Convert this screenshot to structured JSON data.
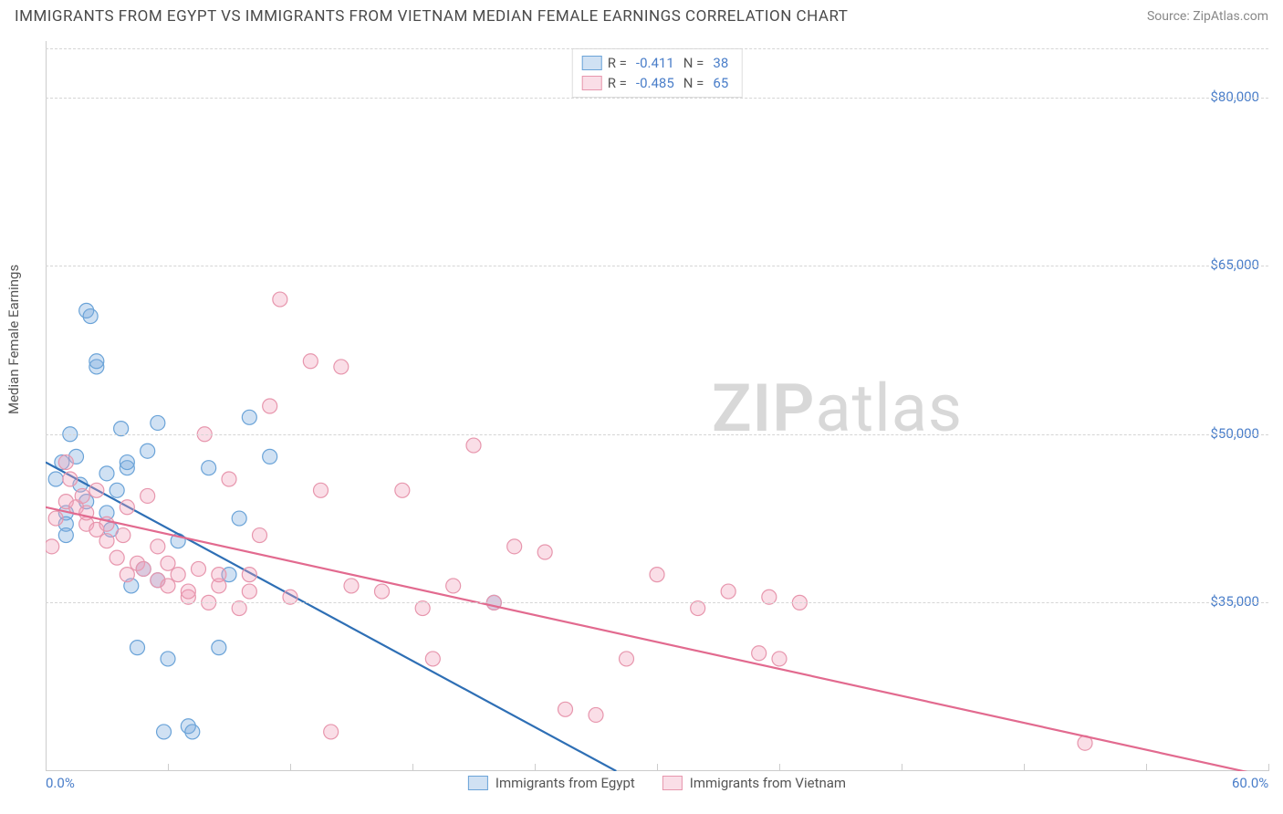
{
  "title": "IMMIGRANTS FROM EGYPT VS IMMIGRANTS FROM VIETNAM MEDIAN FEMALE EARNINGS CORRELATION CHART",
  "source": "Source: ZipAtlas.com",
  "watermark_a": "ZIP",
  "watermark_b": "atlas",
  "y_axis_label": "Median Female Earnings",
  "chart": {
    "type": "scatter",
    "background_color": "#ffffff",
    "grid_color": "#d5d5d5",
    "xlim": [
      0,
      60
    ],
    "ylim": [
      20000,
      85000
    ],
    "x_ticks": [
      0,
      6,
      12,
      18,
      24,
      30,
      36,
      42,
      48,
      54,
      60
    ],
    "x_tick_labels": {
      "0": "0.0%",
      "60": "60.0%"
    },
    "y_ticks": [
      35000,
      50000,
      65000,
      80000
    ],
    "y_tick_labels": [
      "$35,000",
      "$50,000",
      "$65,000",
      "$80,000"
    ],
    "point_radius": 8,
    "point_stroke_width": 1.2,
    "line_width": 2.2,
    "series": [
      {
        "id": "egypt",
        "label": "Immigrants from Egypt",
        "fill_color": "rgba(120,170,220,0.35)",
        "stroke_color": "#6aa3d8",
        "line_color": "#2e6fb5",
        "R": "-0.411",
        "N": "38",
        "regression": {
          "x1": 0,
          "y1": 47500,
          "x2": 28,
          "y2": 20000,
          "dashed_ext": {
            "x2": 30,
            "y2": 18000
          }
        },
        "points": [
          [
            0.5,
            46000
          ],
          [
            0.8,
            47500
          ],
          [
            1.0,
            43000
          ],
          [
            1.0,
            42000
          ],
          [
            1.0,
            41000
          ],
          [
            1.2,
            50000
          ],
          [
            1.5,
            48000
          ],
          [
            1.7,
            45500
          ],
          [
            2.0,
            44000
          ],
          [
            2.0,
            61000
          ],
          [
            2.2,
            60500
          ],
          [
            2.5,
            56000
          ],
          [
            2.5,
            56500
          ],
          [
            3.0,
            46500
          ],
          [
            3.0,
            43000
          ],
          [
            3.2,
            41500
          ],
          [
            3.5,
            45000
          ],
          [
            3.7,
            50500
          ],
          [
            4.0,
            47000
          ],
          [
            4.0,
            47500
          ],
          [
            4.2,
            36500
          ],
          [
            4.5,
            31000
          ],
          [
            4.8,
            38000
          ],
          [
            5.0,
            48500
          ],
          [
            5.5,
            51000
          ],
          [
            5.5,
            37000
          ],
          [
            5.8,
            23500
          ],
          [
            6.0,
            30000
          ],
          [
            6.5,
            40500
          ],
          [
            7.0,
            24000
          ],
          [
            7.2,
            23500
          ],
          [
            8.0,
            47000
          ],
          [
            8.5,
            31000
          ],
          [
            9.0,
            37500
          ],
          [
            9.5,
            42500
          ],
          [
            10.0,
            51500
          ],
          [
            11.0,
            48000
          ],
          [
            22.0,
            35000
          ]
        ]
      },
      {
        "id": "vietnam",
        "label": "Immigrants from Vietnam",
        "fill_color": "rgba(240,160,185,0.35)",
        "stroke_color": "#e796ad",
        "line_color": "#e26a8f",
        "R": "-0.485",
        "N": "65",
        "regression": {
          "x1": 0,
          "y1": 43500,
          "x2": 60,
          "y2": 19500
        },
        "points": [
          [
            0.5,
            42500
          ],
          [
            1.0,
            44000
          ],
          [
            1.0,
            47500
          ],
          [
            1.2,
            46000
          ],
          [
            1.5,
            43500
          ],
          [
            1.8,
            44500
          ],
          [
            2.0,
            42000
          ],
          [
            2.0,
            43000
          ],
          [
            2.5,
            41500
          ],
          [
            2.5,
            45000
          ],
          [
            3.0,
            40500
          ],
          [
            3.0,
            42000
          ],
          [
            3.5,
            39000
          ],
          [
            3.8,
            41000
          ],
          [
            4.0,
            43500
          ],
          [
            4.0,
            37500
          ],
          [
            4.5,
            38500
          ],
          [
            4.8,
            38000
          ],
          [
            5.0,
            44500
          ],
          [
            5.5,
            37000
          ],
          [
            5.5,
            40000
          ],
          [
            6.0,
            36500
          ],
          [
            6.0,
            38500
          ],
          [
            6.5,
            37500
          ],
          [
            7.0,
            35500
          ],
          [
            7.0,
            36000
          ],
          [
            7.5,
            38000
          ],
          [
            7.8,
            50000
          ],
          [
            8.0,
            35000
          ],
          [
            8.5,
            36500
          ],
          [
            8.5,
            37500
          ],
          [
            9.0,
            46000
          ],
          [
            9.5,
            34500
          ],
          [
            10.0,
            36000
          ],
          [
            10.0,
            37500
          ],
          [
            10.5,
            41000
          ],
          [
            11.0,
            52500
          ],
          [
            11.5,
            62000
          ],
          [
            12.0,
            35500
          ],
          [
            13.0,
            56500
          ],
          [
            13.5,
            45000
          ],
          [
            14.0,
            23500
          ],
          [
            15.0,
            36500
          ],
          [
            14.5,
            56000
          ],
          [
            16.5,
            36000
          ],
          [
            17.5,
            45000
          ],
          [
            18.5,
            34500
          ],
          [
            19.0,
            30000
          ],
          [
            20.0,
            36500
          ],
          [
            21.0,
            49000
          ],
          [
            22.0,
            35000
          ],
          [
            23.0,
            40000
          ],
          [
            24.5,
            39500
          ],
          [
            25.5,
            25500
          ],
          [
            27.0,
            25000
          ],
          [
            28.5,
            30000
          ],
          [
            30.0,
            37500
          ],
          [
            32.0,
            34500
          ],
          [
            33.5,
            36000
          ],
          [
            35.0,
            30500
          ],
          [
            35.5,
            35500
          ],
          [
            36.0,
            30000
          ],
          [
            37.0,
            35000
          ],
          [
            51.0,
            22500
          ],
          [
            0.3,
            40000
          ]
        ]
      }
    ]
  },
  "legend_labels": {
    "R": "R =",
    "N": "N ="
  }
}
